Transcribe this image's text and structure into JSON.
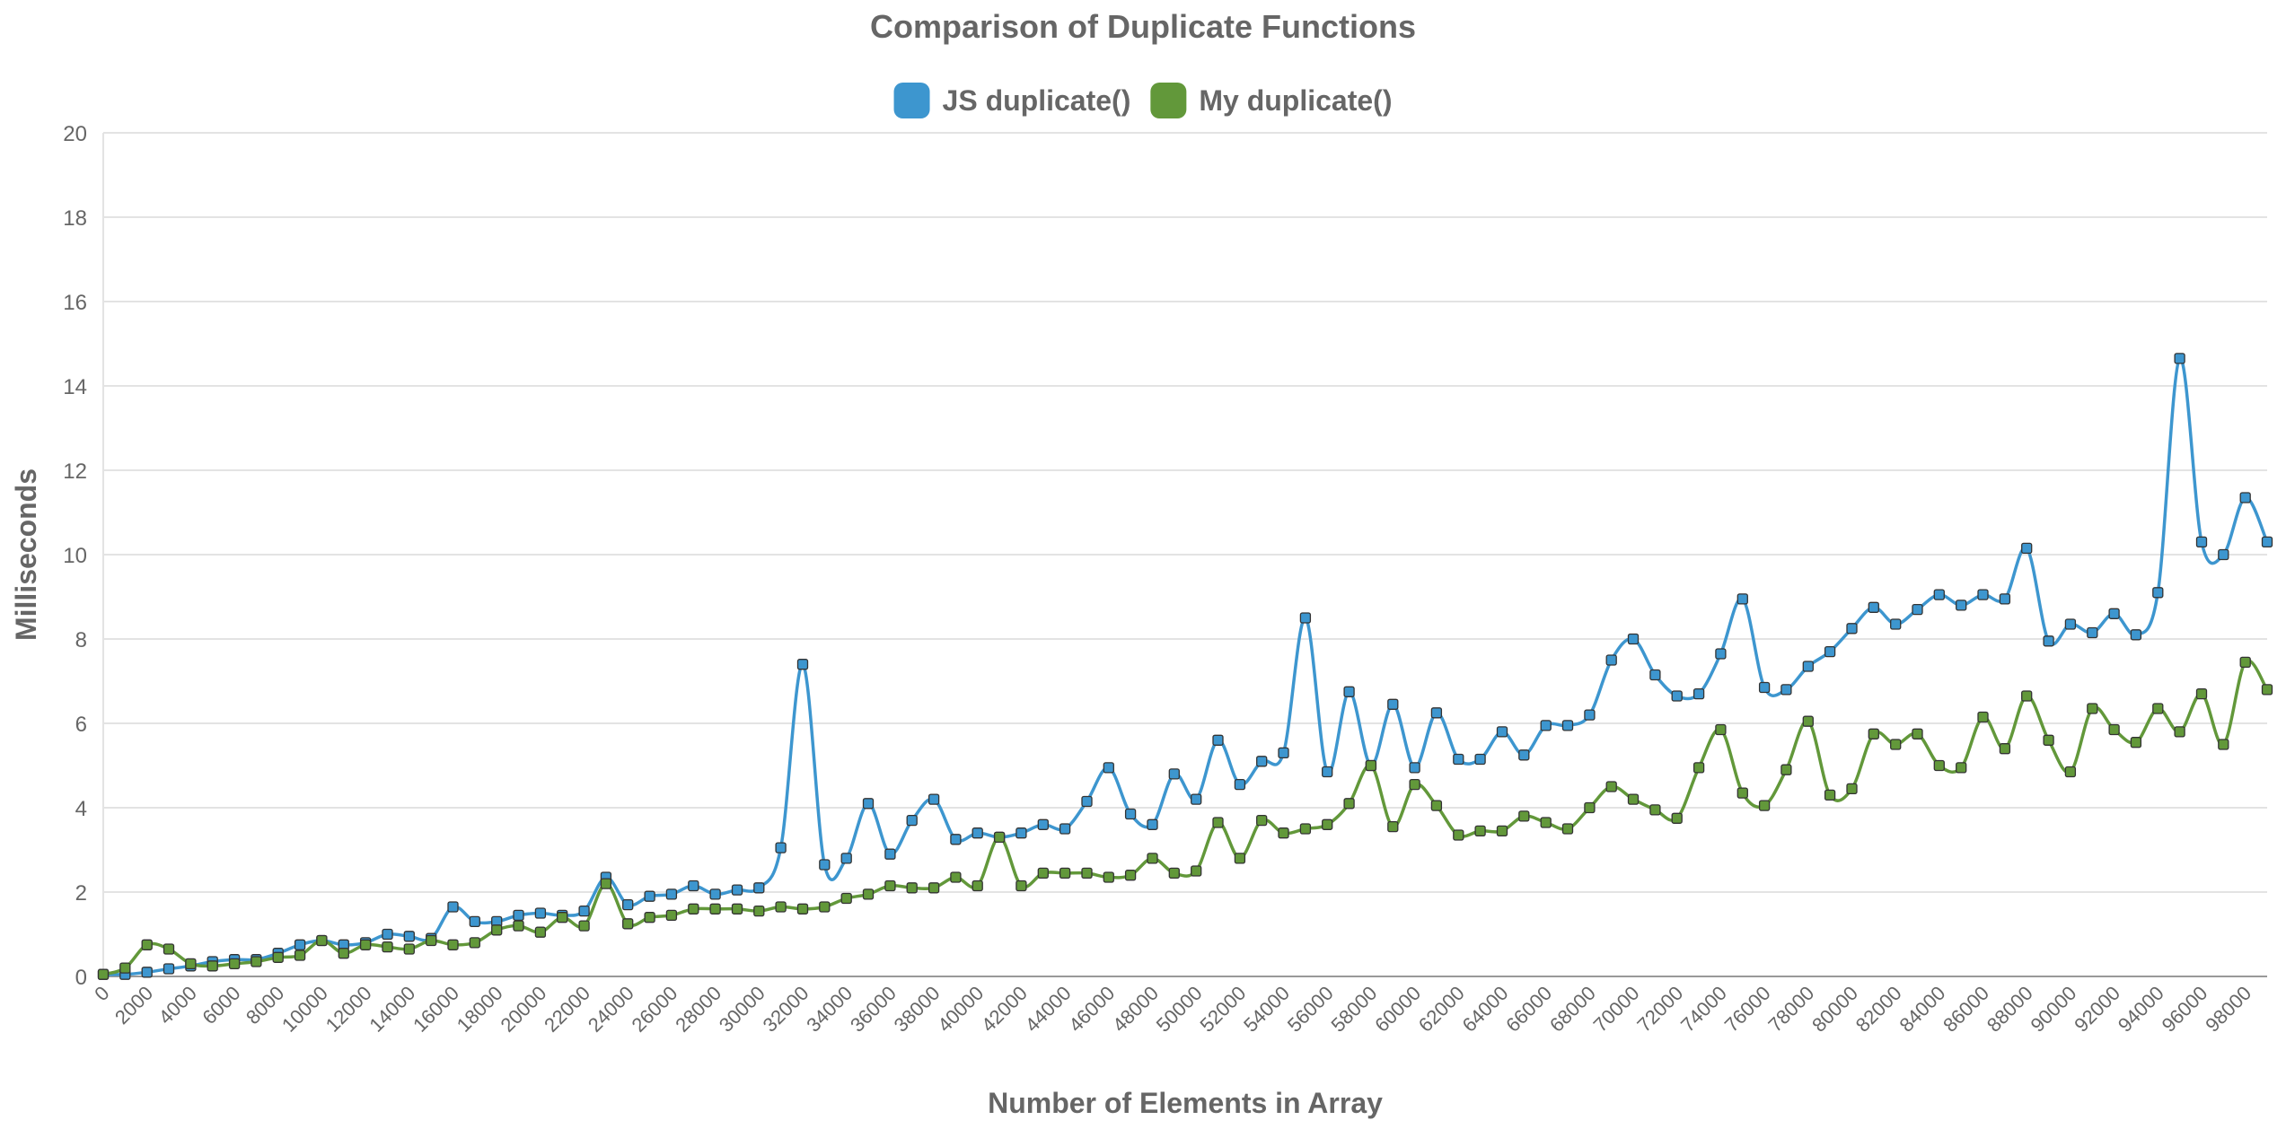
{
  "chart_data": {
    "type": "line",
    "title": "Comparison of Duplicate Functions",
    "xlabel": "Number of Elements in Array",
    "ylabel": "Milliseconds",
    "ylim": [
      0,
      20
    ],
    "yticks": [
      0,
      2,
      4,
      6,
      8,
      10,
      12,
      14,
      16,
      18,
      20
    ],
    "xlim": [
      0,
      99000
    ],
    "xticks": [
      0,
      2000,
      4000,
      6000,
      8000,
      10000,
      12000,
      14000,
      16000,
      18000,
      20000,
      22000,
      24000,
      26000,
      28000,
      30000,
      32000,
      34000,
      36000,
      38000,
      40000,
      42000,
      44000,
      46000,
      48000,
      50000,
      52000,
      54000,
      56000,
      58000,
      60000,
      62000,
      64000,
      66000,
      68000,
      70000,
      72000,
      74000,
      76000,
      78000,
      80000,
      82000,
      84000,
      86000,
      88000,
      90000,
      92000,
      94000,
      96000,
      98000
    ],
    "grid": true,
    "legend_position": "top-center",
    "x_step": 1000,
    "series": [
      {
        "name": "JS duplicate()",
        "color": "#3d96cf",
        "values": [
          0.05,
          0.05,
          0.1,
          0.18,
          0.25,
          0.35,
          0.4,
          0.4,
          0.55,
          0.75,
          0.85,
          0.75,
          0.8,
          1.0,
          0.95,
          0.9,
          1.65,
          1.3,
          1.3,
          1.45,
          1.5,
          1.45,
          1.55,
          2.35,
          1.7,
          1.9,
          1.95,
          2.15,
          1.95,
          2.05,
          2.1,
          3.05,
          7.4,
          2.65,
          2.8,
          4.1,
          2.9,
          3.7,
          4.2,
          3.25,
          3.4,
          3.3,
          3.4,
          3.6,
          3.5,
          4.15,
          4.95,
          3.85,
          3.6,
          4.8,
          4.2,
          5.6,
          4.55,
          5.1,
          5.3,
          8.5,
          4.85,
          6.75,
          5.0,
          6.45,
          4.95,
          6.25,
          5.15,
          5.15,
          5.8,
          5.25,
          5.95,
          5.95,
          6.2,
          7.5,
          8.0,
          7.15,
          6.65,
          6.7,
          7.65,
          8.95,
          6.85,
          6.8,
          7.35,
          7.7,
          8.25,
          8.75,
          8.35,
          8.7,
          9.05,
          8.8,
          9.05,
          8.95,
          10.15,
          7.95,
          8.35,
          8.15,
          8.6,
          8.1,
          9.1,
          14.65,
          10.3,
          10.0,
          11.35,
          10.3
        ]
      },
      {
        "name": "My duplicate()",
        "color": "#62983a",
        "values": [
          0.05,
          0.2,
          0.75,
          0.65,
          0.3,
          0.25,
          0.3,
          0.35,
          0.45,
          0.5,
          0.85,
          0.55,
          0.75,
          0.7,
          0.65,
          0.85,
          0.75,
          0.8,
          1.1,
          1.2,
          1.05,
          1.4,
          1.2,
          2.2,
          1.25,
          1.4,
          1.45,
          1.6,
          1.6,
          1.6,
          1.55,
          1.65,
          1.6,
          1.65,
          1.85,
          1.95,
          2.15,
          2.1,
          2.1,
          2.35,
          2.15,
          3.3,
          2.15,
          2.45,
          2.45,
          2.45,
          2.35,
          2.4,
          2.8,
          2.45,
          2.5,
          3.65,
          2.8,
          3.7,
          3.4,
          3.5,
          3.6,
          4.1,
          5.0,
          3.55,
          4.55,
          4.05,
          3.35,
          3.45,
          3.45,
          3.8,
          3.65,
          3.5,
          4.0,
          4.5,
          4.2,
          3.95,
          3.75,
          4.95,
          5.85,
          4.35,
          4.05,
          4.9,
          6.05,
          4.3,
          4.45,
          5.75,
          5.5,
          5.75,
          5.0,
          4.95,
          6.15,
          5.4,
          6.65,
          5.6,
          4.85,
          6.35,
          5.85,
          5.55,
          6.35,
          5.8,
          6.7,
          5.5,
          7.45,
          6.8
        ]
      }
    ]
  }
}
